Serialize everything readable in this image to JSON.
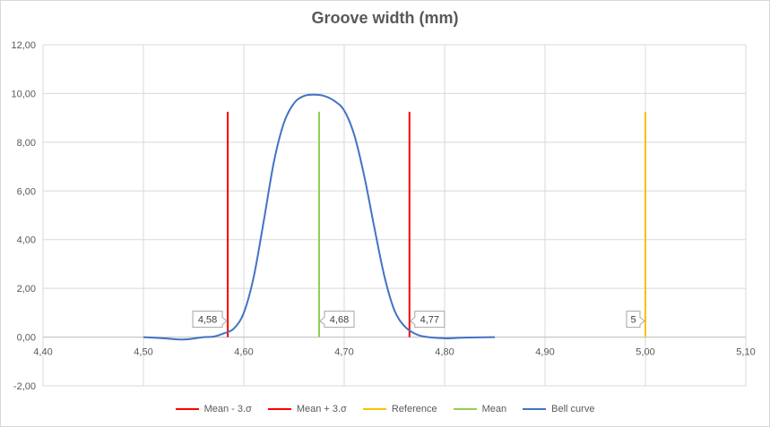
{
  "chart_data": {
    "type": "line",
    "title": "Groove width (mm)",
    "xlim": [
      4.4,
      5.1
    ],
    "ylim": [
      -2,
      12
    ],
    "x_ticks": [
      "4,40",
      "4,50",
      "4,60",
      "4,70",
      "4,80",
      "4,90",
      "5,00",
      "5,10"
    ],
    "y_ticks": [
      "-2,00",
      "0,00",
      "2,00",
      "4,00",
      "6,00",
      "8,00",
      "10,00",
      "12,00"
    ],
    "x_tick_values": [
      4.4,
      4.5,
      4.6,
      4.7,
      4.8,
      4.9,
      5.0,
      5.1
    ],
    "y_tick_values": [
      -2,
      0,
      2,
      4,
      6,
      8,
      10,
      12
    ],
    "grid": true,
    "legend_position": "bottom",
    "series": [
      {
        "name": "Mean - 3.σ",
        "color": "#ff0000",
        "kind": "vline",
        "x": 4.584,
        "y": [
          0,
          9.25
        ],
        "label": "4,58"
      },
      {
        "name": "Mean + 3.σ",
        "color": "#ff0000",
        "kind": "vline",
        "x": 4.765,
        "y": [
          0,
          9.25
        ],
        "label": "4,77"
      },
      {
        "name": "Reference",
        "color": "#ffc000",
        "kind": "vline",
        "x": 5.0,
        "y": [
          0,
          9.25
        ],
        "label": "5"
      },
      {
        "name": "Mean",
        "color": "#92d050",
        "kind": "vline",
        "x": 4.675,
        "y": [
          0,
          9.25
        ],
        "label": "4,68"
      },
      {
        "name": "Bell curve",
        "color": "#4472c4",
        "kind": "curve",
        "x": [
          4.5,
          4.52,
          4.54,
          4.56,
          4.57,
          4.58,
          4.59,
          4.6,
          4.61,
          4.62,
          4.63,
          4.64,
          4.65,
          4.66,
          4.67,
          4.68,
          4.69,
          4.7,
          4.71,
          4.72,
          4.73,
          4.74,
          4.75,
          4.76,
          4.77,
          4.78,
          4.8,
          4.82,
          4.85
        ],
        "y": [
          0.0,
          -0.05,
          -0.1,
          0.0,
          0.02,
          0.15,
          0.35,
          1.0,
          2.5,
          4.8,
          7.2,
          8.8,
          9.6,
          9.9,
          9.95,
          9.9,
          9.7,
          9.3,
          8.3,
          6.6,
          4.5,
          2.5,
          1.1,
          0.45,
          0.15,
          0.02,
          -0.05,
          -0.02,
          0.0
        ]
      }
    ]
  }
}
